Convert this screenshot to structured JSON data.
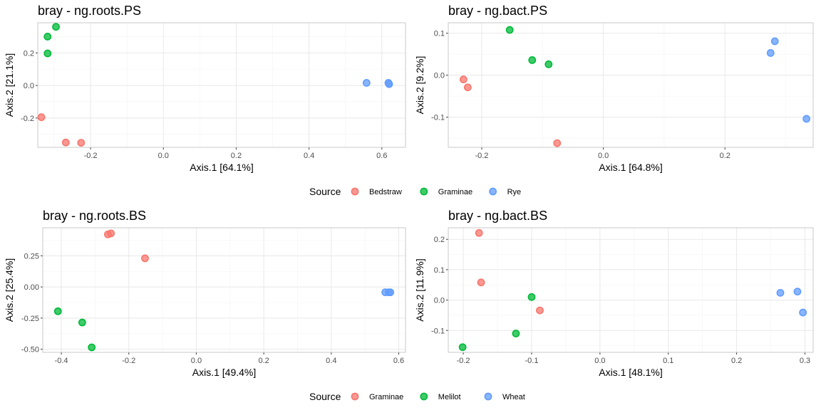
{
  "colors": {
    "red": "#F8766D",
    "green": "#00BA38",
    "blue": "#619CFF",
    "grid_major": "#e8e8e8",
    "grid_minor": "#f3f3f3",
    "panel_border": "#c8c8c8"
  },
  "legends": [
    {
      "title": "Source",
      "items": [
        {
          "label": "Bedstraw",
          "color": "#F8766D"
        },
        {
          "label": "Graminae",
          "color": "#00BA38"
        },
        {
          "label": "Rye",
          "color": "#619CFF"
        }
      ]
    },
    {
      "title": "Source",
      "items": [
        {
          "label": "Graminae",
          "color": "#F8766D"
        },
        {
          "label": "Melilot",
          "color": "#00BA38"
        },
        {
          "label": "Wheat",
          "color": "#619CFF"
        }
      ]
    }
  ],
  "chart_data": [
    {
      "type": "scatter",
      "title": "bray - ng.roots.PS",
      "xlabel": "Axis.1   [64.1%]",
      "ylabel": "Axis.2   [21.1%]",
      "xlim": [
        -0.345,
        0.665
      ],
      "ylim": [
        -0.38,
        0.385
      ],
      "xticks": [
        -0.2,
        0.0,
        0.2,
        0.4,
        0.6
      ],
      "xtick_labels": [
        "-0.2",
        "0.0",
        "0.2",
        "0.4",
        "0.6"
      ],
      "yticks": [
        -0.2,
        0.0,
        0.2
      ],
      "ytick_labels": [
        "-0.2",
        "0.0",
        "0.2"
      ],
      "grid": true,
      "series": [
        {
          "name": "Bedstraw",
          "color": "#F8766D",
          "points": [
            [
              -0.335,
              -0.195
            ],
            [
              -0.268,
              -0.35
            ],
            [
              -0.226,
              -0.352
            ]
          ]
        },
        {
          "name": "Graminae",
          "color": "#00BA38",
          "points": [
            [
              -0.295,
              0.36
            ],
            [
              -0.318,
              0.3
            ],
            [
              -0.318,
              0.197
            ]
          ]
        },
        {
          "name": "Rye",
          "color": "#619CFF",
          "points": [
            [
              0.558,
              0.016
            ],
            [
              0.618,
              0.016
            ],
            [
              0.62,
              0.008
            ]
          ]
        }
      ]
    },
    {
      "type": "scatter",
      "title": "bray - ng.bact.PS",
      "xlabel": "Axis.1   [64.8%]",
      "ylabel": "Axis.2   [9.2%]",
      "xlim": [
        -0.255,
        0.345
      ],
      "ylim": [
        -0.172,
        0.125
      ],
      "xticks": [
        -0.2,
        0.0,
        0.2
      ],
      "xtick_labels": [
        "-0.2",
        "0.0",
        "0.2"
      ],
      "yticks": [
        -0.1,
        0.0,
        0.1
      ],
      "ytick_labels": [
        "-0.1",
        "0.0",
        "0.1"
      ],
      "grid": true,
      "series": [
        {
          "name": "Bedstraw",
          "color": "#F8766D",
          "points": [
            [
              -0.23,
              -0.01
            ],
            [
              -0.223,
              -0.029
            ],
            [
              -0.076,
              -0.162
            ]
          ]
        },
        {
          "name": "Graminae",
          "color": "#00BA38",
          "points": [
            [
              -0.154,
              0.108
            ],
            [
              -0.117,
              0.036
            ],
            [
              -0.09,
              0.026
            ]
          ]
        },
        {
          "name": "Rye",
          "color": "#619CFF",
          "points": [
            [
              0.282,
              0.081
            ],
            [
              0.275,
              0.053
            ],
            [
              0.334,
              -0.104
            ]
          ]
        }
      ]
    },
    {
      "type": "scatter",
      "title": "bray - ng.roots.BS",
      "xlabel": "Axis.1   [49.4%]",
      "ylabel": "Axis.2   [25.4%]",
      "xlim": [
        -0.455,
        0.62
      ],
      "ylim": [
        -0.525,
        0.475
      ],
      "xticks": [
        -0.4,
        -0.2,
        0.0,
        0.2,
        0.4,
        0.6
      ],
      "xtick_labels": [
        "-0.4",
        "-0.2",
        "0.0",
        "0.2",
        "0.4",
        "0.6"
      ],
      "yticks": [
        -0.5,
        -0.25,
        0.0,
        0.25
      ],
      "ytick_labels": [
        "-0.50",
        "-0.25",
        "0.00",
        "0.25"
      ],
      "grid": true,
      "series": [
        {
          "name": "Graminae",
          "color": "#F8766D",
          "points": [
            [
              -0.253,
              0.43
            ],
            [
              -0.262,
              0.422
            ],
            [
              -0.152,
              0.23
            ]
          ]
        },
        {
          "name": "Melilot",
          "color": "#00BA38",
          "points": [
            [
              -0.41,
              -0.195
            ],
            [
              -0.338,
              -0.285
            ],
            [
              -0.31,
              -0.485
            ]
          ]
        },
        {
          "name": "Wheat",
          "color": "#619CFF",
          "points": [
            [
              0.56,
              -0.043
            ],
            [
              0.57,
              -0.043
            ],
            [
              0.575,
              -0.043
            ]
          ]
        }
      ]
    },
    {
      "type": "scatter",
      "title": "bray - ng.bact.BS",
      "xlabel": "Axis.1   [48.1%]",
      "ylabel": "Axis.2   [11.9%]",
      "xlim": [
        -0.222,
        0.312
      ],
      "ylim": [
        -0.172,
        0.238
      ],
      "xticks": [
        -0.2,
        -0.1,
        0.0,
        0.1,
        0.2,
        0.3
      ],
      "xtick_labels": [
        "-0.2",
        "-0.1",
        "0.0",
        "0.1",
        "0.2",
        "0.3"
      ],
      "yticks": [
        -0.1,
        0.0,
        0.1,
        0.2
      ],
      "ytick_labels": [
        "-0.1",
        "0.0",
        "0.1",
        "0.2"
      ],
      "grid": true,
      "series": [
        {
          "name": "Graminae",
          "color": "#F8766D",
          "points": [
            [
              -0.177,
              0.221
            ],
            [
              -0.174,
              0.058
            ],
            [
              -0.088,
              -0.034
            ]
          ]
        },
        {
          "name": "Melilot",
          "color": "#00BA38",
          "points": [
            [
              -0.1,
              0.01
            ],
            [
              -0.123,
              -0.11
            ],
            [
              -0.201,
              -0.155
            ]
          ]
        },
        {
          "name": "Wheat",
          "color": "#619CFF",
          "points": [
            [
              0.264,
              0.024
            ],
            [
              0.289,
              0.028
            ],
            [
              0.297,
              -0.041
            ]
          ]
        }
      ]
    }
  ]
}
